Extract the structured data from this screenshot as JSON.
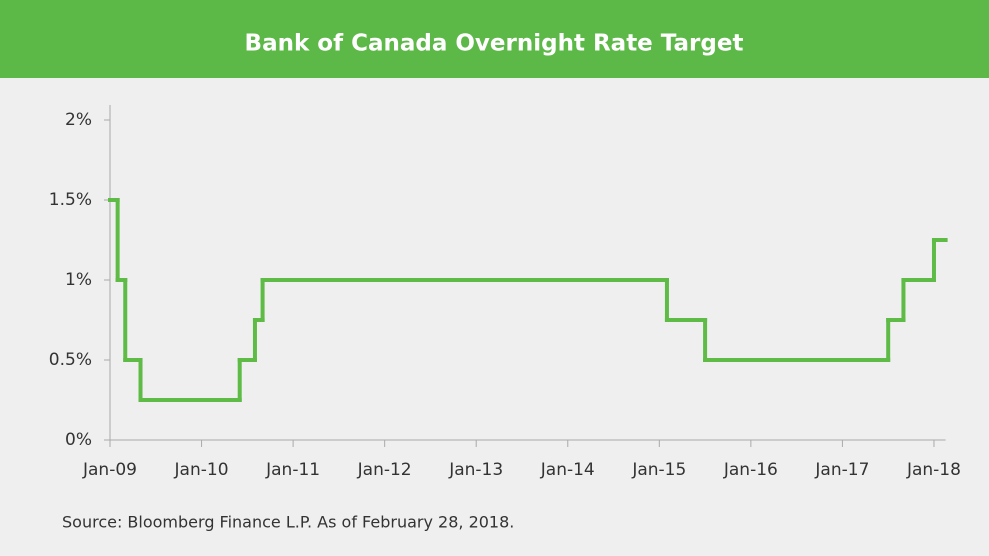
{
  "chart_data": {
    "type": "step",
    "title": "Bank of Canada Overnight Rate Target",
    "source": "Source: Bloomberg Finance L.P. As of February 28, 2018.",
    "x": [
      "2009-01",
      "2009-02",
      "2009-03",
      "2009-05",
      "2010-06",
      "2010-08",
      "2010-09",
      "2015-02",
      "2015-07",
      "2017-07",
      "2017-09",
      "2018-01",
      "2018-02"
    ],
    "series": [
      {
        "name": "Overnight Rate Target",
        "color": "#5dbb46",
        "values": [
          1.5,
          1.0,
          0.5,
          0.25,
          0.5,
          0.75,
          1.0,
          0.75,
          0.5,
          0.75,
          1.0,
          1.25,
          1.25
        ]
      }
    ],
    "xlim": [
      "2009-01",
      "2018-02"
    ],
    "xticks": [
      {
        "value": "2009-01",
        "label": "Jan-09"
      },
      {
        "value": "2010-01",
        "label": "Jan-10"
      },
      {
        "value": "2011-01",
        "label": "Jan-11"
      },
      {
        "value": "2012-01",
        "label": "Jan-12"
      },
      {
        "value": "2013-01",
        "label": "Jan-13"
      },
      {
        "value": "2014-01",
        "label": "Jan-14"
      },
      {
        "value": "2015-01",
        "label": "Jan-15"
      },
      {
        "value": "2016-01",
        "label": "Jan-16"
      },
      {
        "value": "2017-01",
        "label": "Jan-17"
      },
      {
        "value": "2018-01",
        "label": "Jan-18"
      }
    ],
    "ylim": [
      0,
      2
    ],
    "yticks": [
      {
        "value": 0,
        "label": "0%"
      },
      {
        "value": 0.5,
        "label": "0.5%"
      },
      {
        "value": 1,
        "label": "1%"
      },
      {
        "value": 1.5,
        "label": "1.5%"
      },
      {
        "value": 2,
        "label": "2%"
      }
    ]
  }
}
